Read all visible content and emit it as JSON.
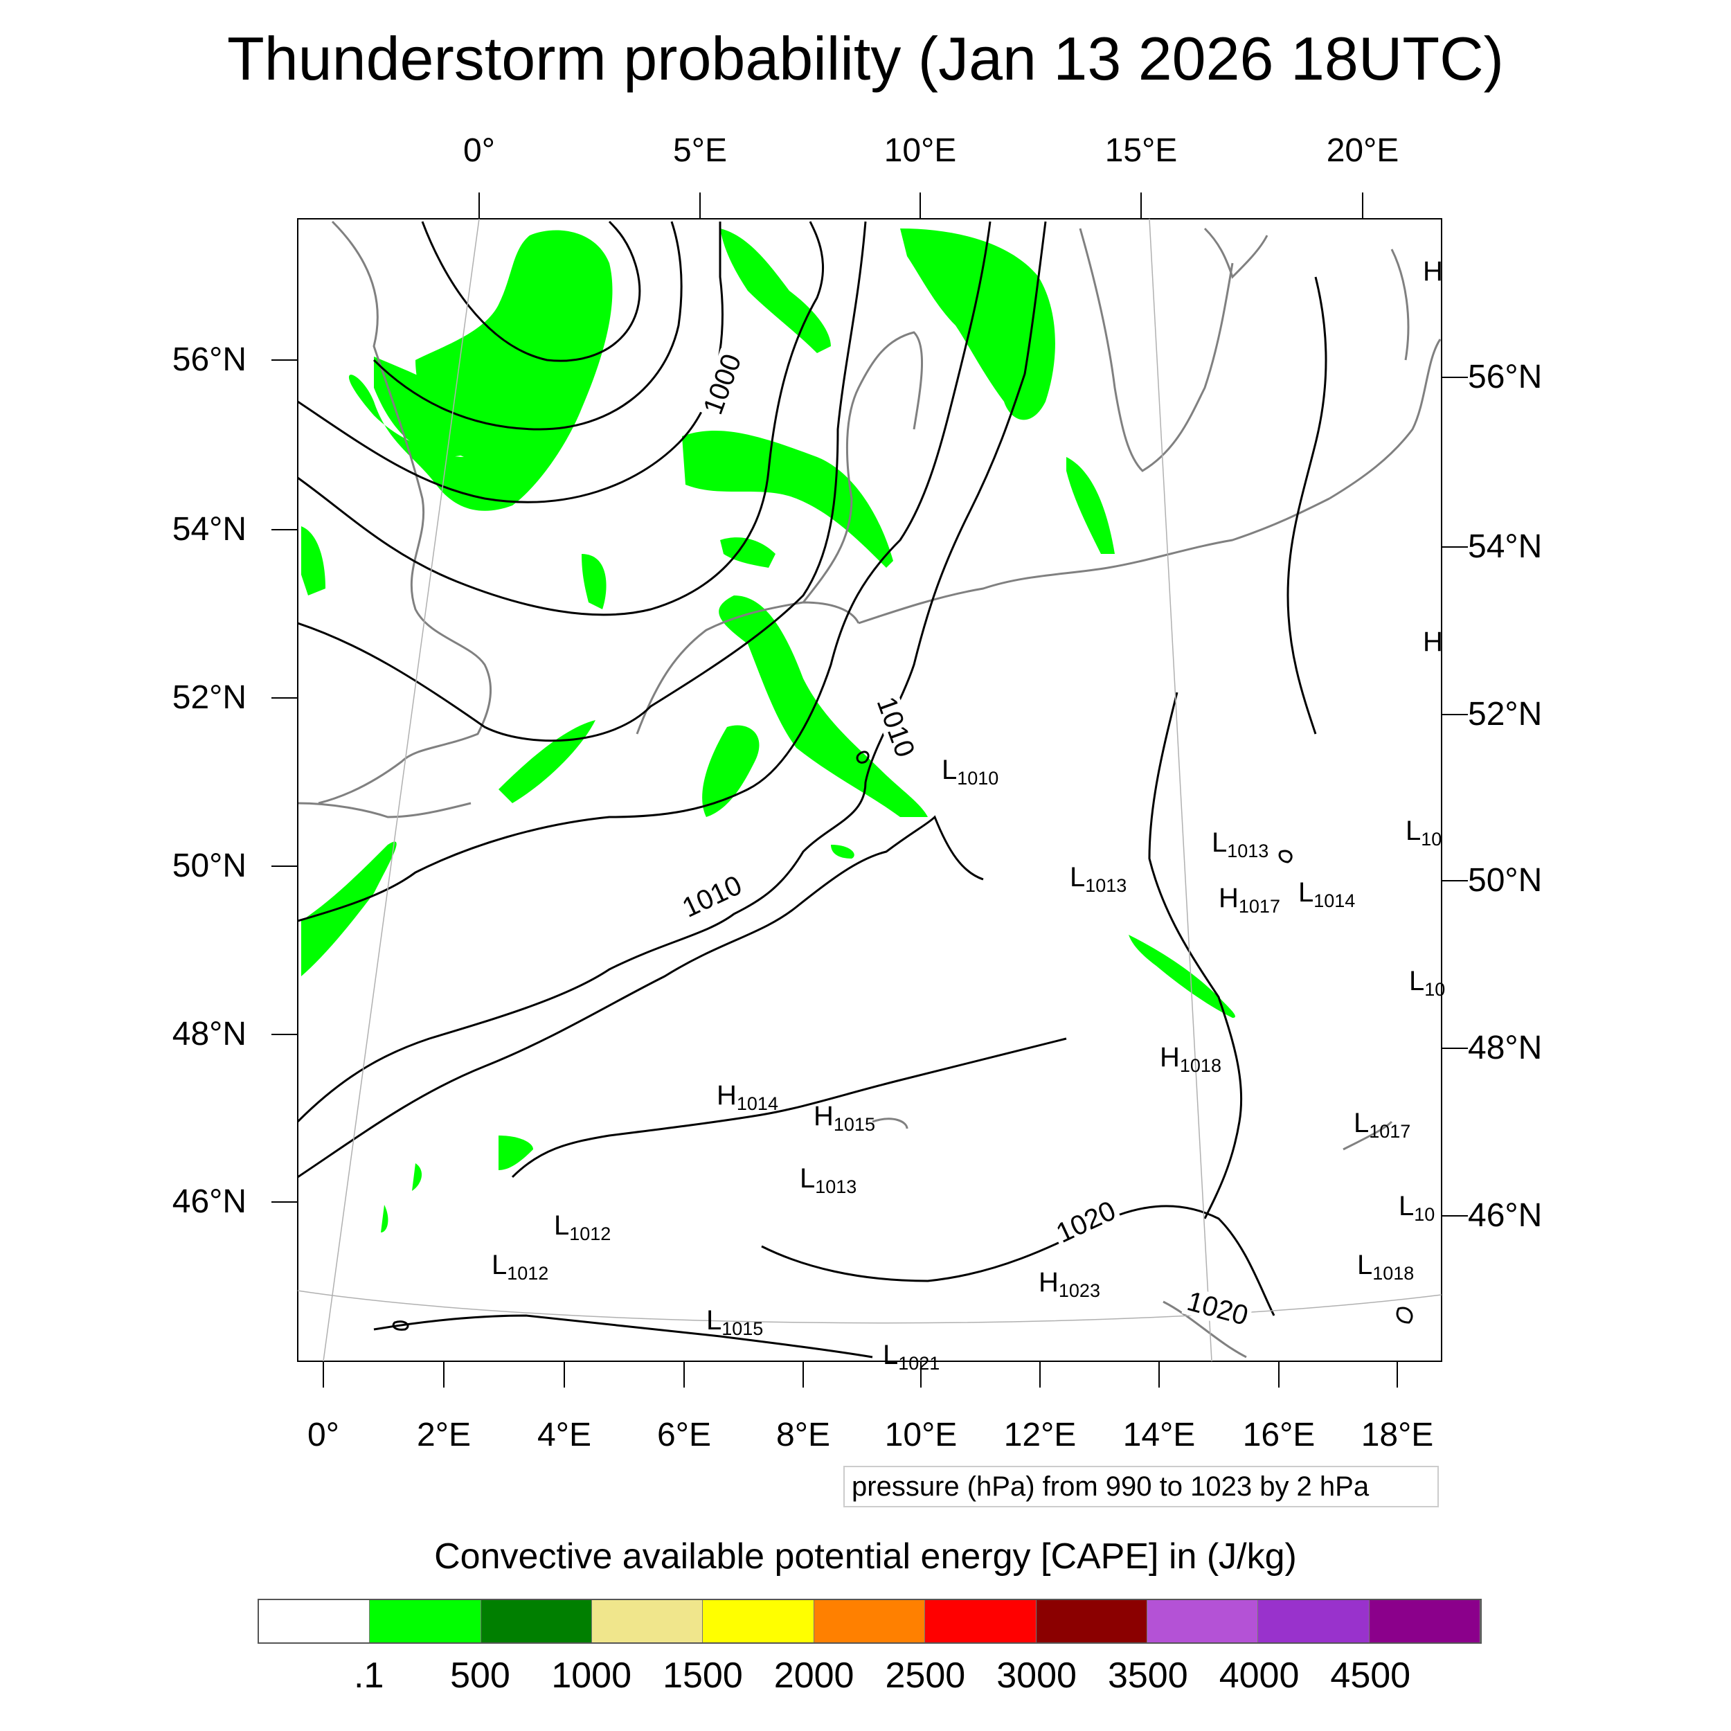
{
  "title": "Thunderstorm probability (Jan 13 2026 18UTC)",
  "top_axis": [
    "0°",
    "5°E",
    "10°E",
    "15°E",
    "20°E"
  ],
  "bottom_axis": [
    "0°",
    "2°E",
    "4°E",
    "6°E",
    "8°E",
    "10°E",
    "12°E",
    "14°E",
    "16°E",
    "18°E"
  ],
  "left_axis": [
    "56°N",
    "54°N",
    "52°N",
    "50°N",
    "48°N",
    "46°N"
  ],
  "right_axis": [
    "56°N",
    "54°N",
    "52°N",
    "50°N",
    "48°N",
    "46°N"
  ],
  "isobar_labels": [
    "1000",
    "1010",
    "1010",
    "1020",
    "1020"
  ],
  "pressure_centers": [
    {
      "letter": "L",
      "value": "1010"
    },
    {
      "letter": "L",
      "value": "1013"
    },
    {
      "letter": "L",
      "value": "1013"
    },
    {
      "letter": "H",
      "value": "1017"
    },
    {
      "letter": "L",
      "value": "1014"
    },
    {
      "letter": "H",
      "value": "1018"
    },
    {
      "letter": "H",
      "value": "1014"
    },
    {
      "letter": "H",
      "value": "1015"
    },
    {
      "letter": "L",
      "value": "1013"
    },
    {
      "letter": "L",
      "value": "1012"
    },
    {
      "letter": "L",
      "value": "1012"
    },
    {
      "letter": "L",
      "value": "1015"
    },
    {
      "letter": "H",
      "value": "1023"
    },
    {
      "letter": "L",
      "value": "1017"
    },
    {
      "letter": "L",
      "value": "1018"
    },
    {
      "letter": "L",
      "value": "10"
    },
    {
      "letter": "L",
      "value": "10"
    },
    {
      "letter": "L",
      "value": "10"
    },
    {
      "letter": "H",
      "value": ""
    },
    {
      "letter": "H",
      "value": ""
    },
    {
      "letter": "L",
      "value": "1021"
    }
  ],
  "pressure_note": "pressure (hPa) from 990 to 1023 by 2 hPa",
  "colorbar": {
    "title": "Convective available potential energy [CAPE] in (J/kg)",
    "colors": [
      "#ffffff",
      "#00ff00",
      "#007f00",
      "#f0e68c",
      "#ffff00",
      "#ff8000",
      "#ff0000",
      "#8b0000",
      "#b452d6",
      "#9932cc",
      "#8b008b"
    ],
    "ticks": [
      ".1",
      "500",
      "1000",
      "1500",
      "2000",
      "2500",
      "3000",
      "3500",
      "4000",
      "4500"
    ]
  },
  "colors": {
    "cape_green": "#00ff00",
    "coast": "#808080",
    "isobar": "#000000"
  }
}
